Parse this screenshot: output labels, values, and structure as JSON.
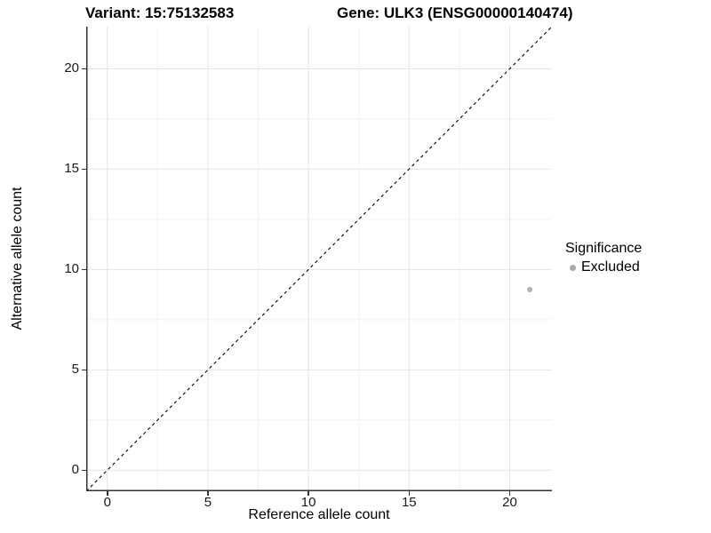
{
  "chart_data": {
    "type": "scatter",
    "titles": {
      "variant": "Variant: 15:75132583",
      "gene": "Gene: ULK3 (ENSG00000140474)"
    },
    "xlabel": "Reference allele count",
    "ylabel": "Alternative allele count",
    "xlim": [
      -1.05,
      22.1
    ],
    "ylim": [
      -1.05,
      22.1
    ],
    "xticks": [
      0,
      5,
      10,
      15,
      20
    ],
    "yticks": [
      0,
      5,
      10,
      15,
      20
    ],
    "minor_xticks": [
      2.5,
      7.5,
      12.5,
      17.5
    ],
    "minor_yticks": [
      2.5,
      7.5,
      12.5,
      17.5
    ],
    "grid": true,
    "points": [
      {
        "x": 21,
        "y": 9,
        "series": "Excluded"
      }
    ],
    "identity_line": {
      "type": "y=x",
      "style": "dashed",
      "from": -1.05,
      "to": 22.1
    },
    "legend": {
      "title": "Significance",
      "position": "right",
      "entries": [
        {
          "label": "Excluded",
          "color": "#a8a8a8"
        }
      ]
    },
    "colors": {
      "point": "#b0b0b0",
      "grid_major": "#e4e4e4",
      "grid_minor": "#f1f1f1",
      "axis_line": "#333333",
      "identity_line": "#000000"
    }
  }
}
